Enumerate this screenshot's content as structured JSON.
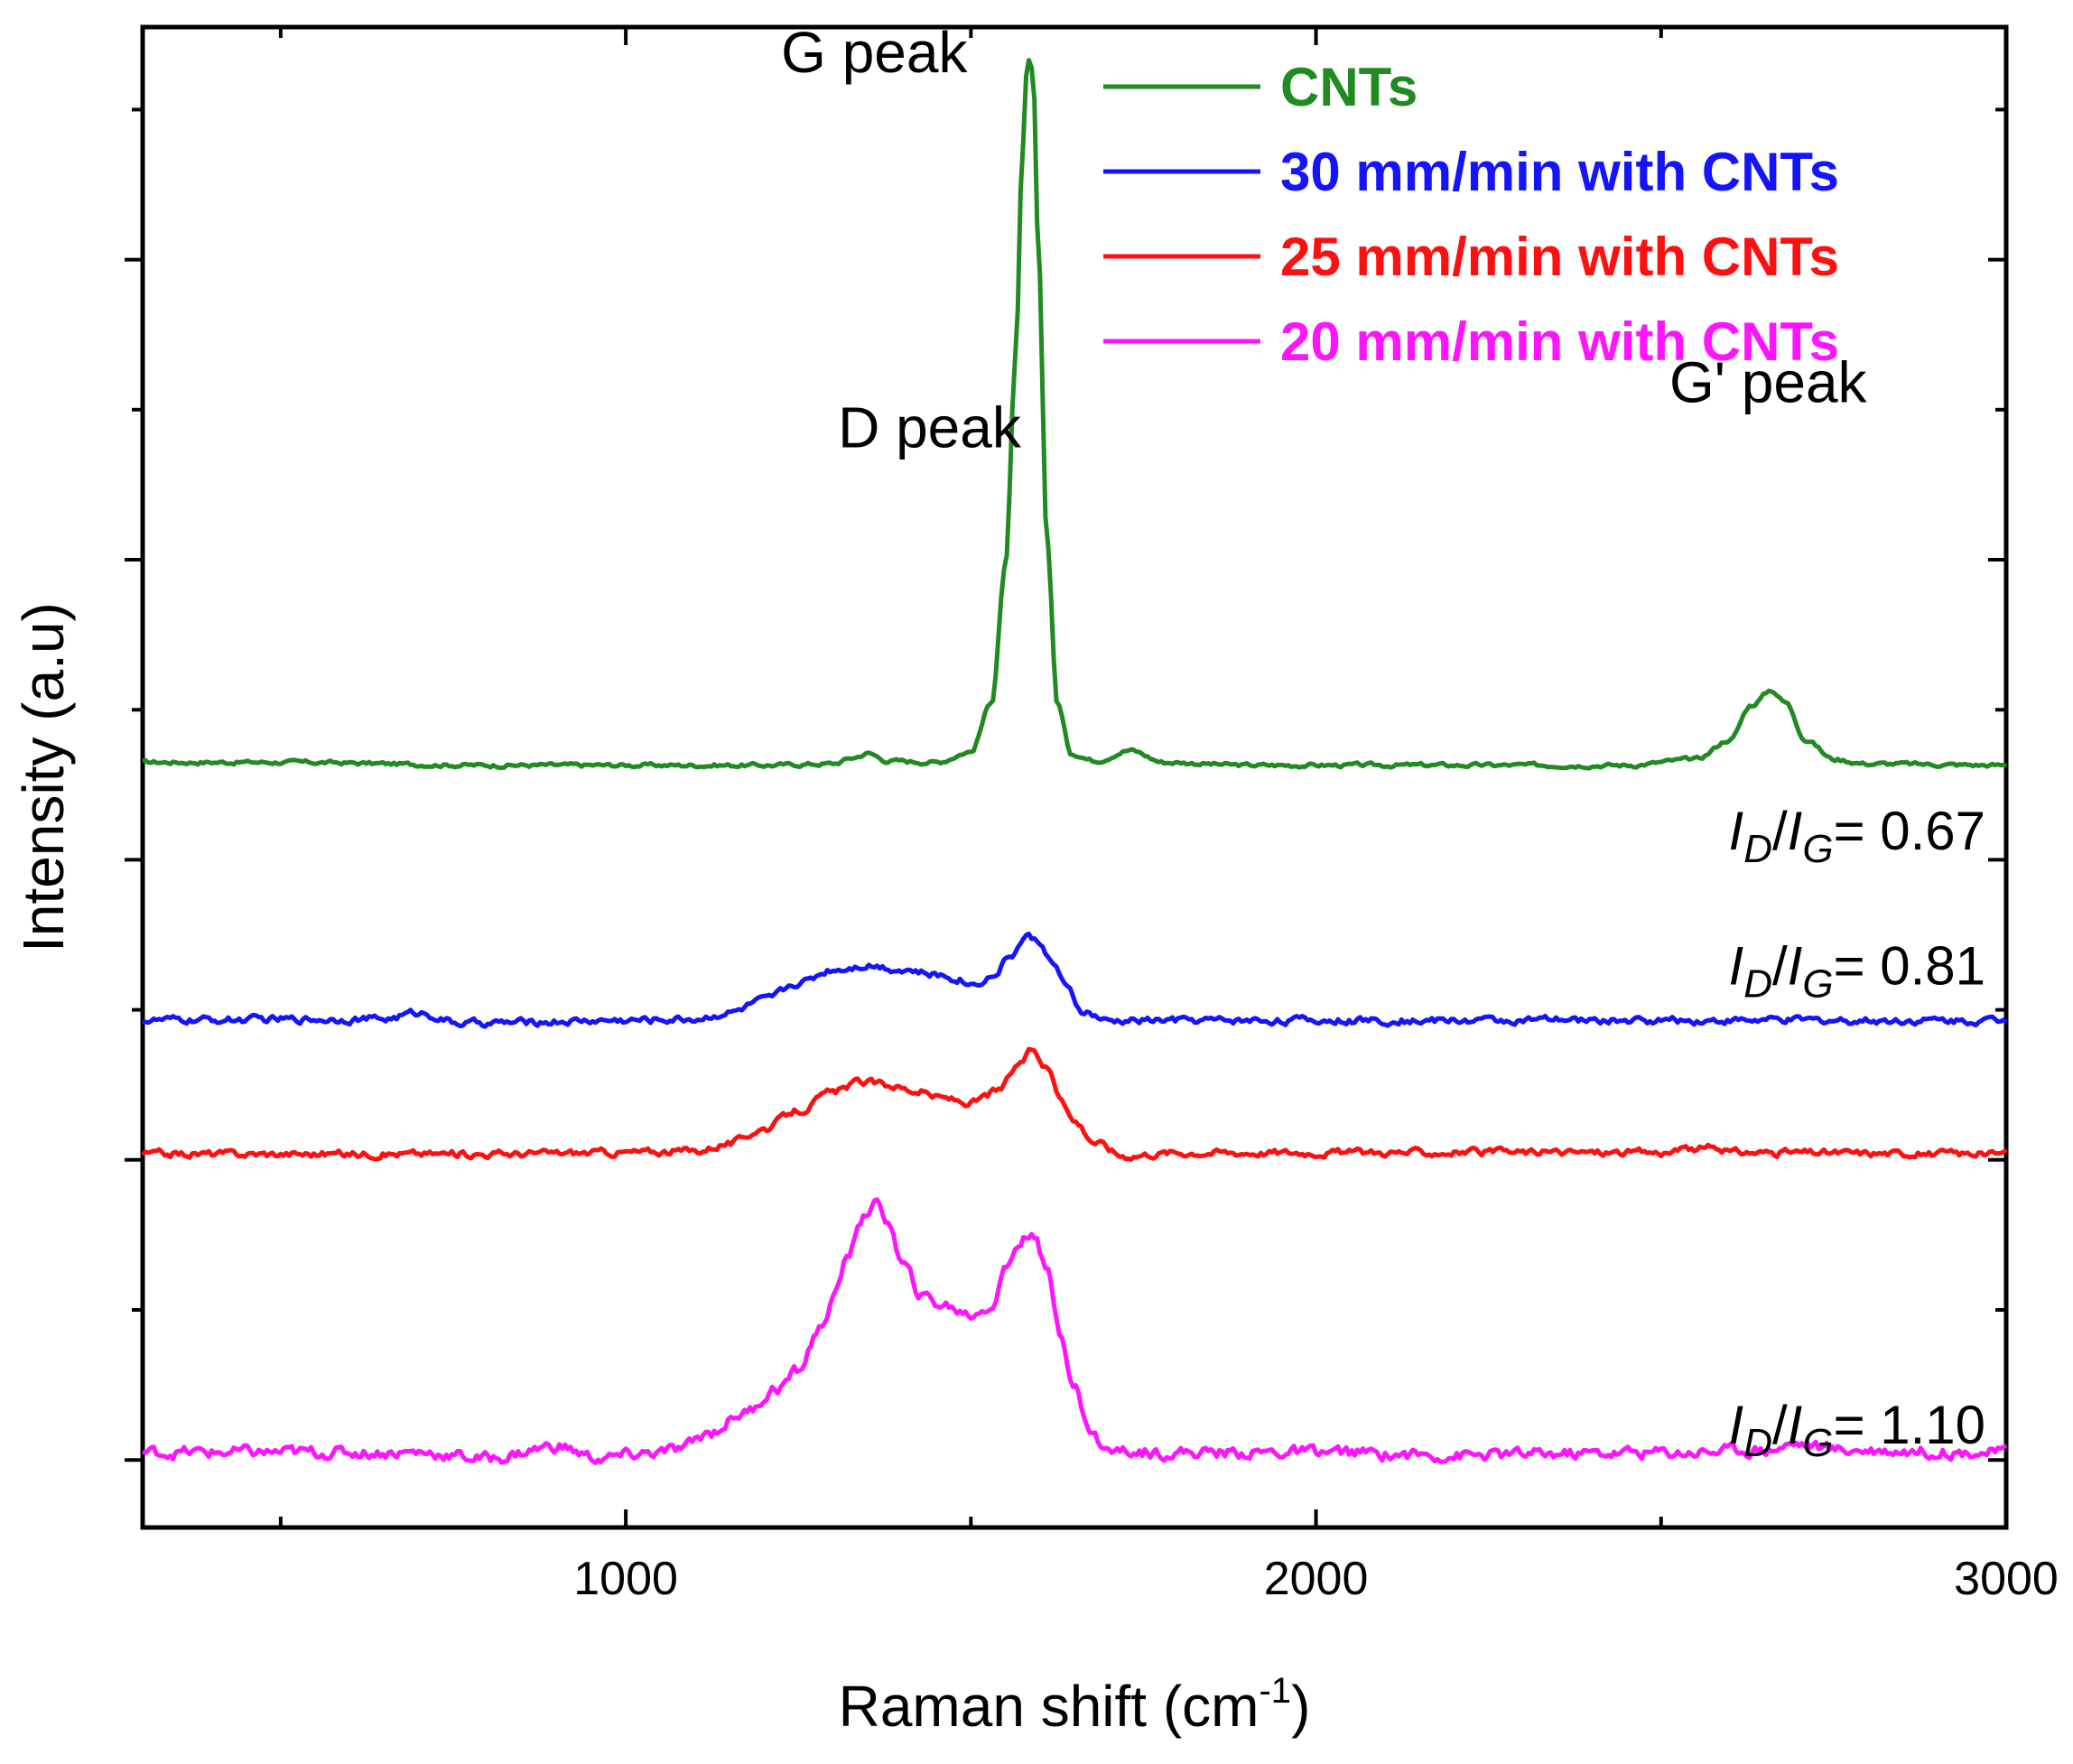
{
  "chart_data": {
    "type": "line",
    "xlabel": "Raman shift (cm",
    "xlabel_sup": "-1",
    "xlabel_close": ")",
    "ylabel": "Intensity (a.u)",
    "xlim": [
      300,
      3000
    ],
    "ylim": [
      0,
      100
    ],
    "x_ticks": [
      1000,
      2000,
      3000
    ],
    "x_tick_labels": [
      "1000",
      "2000",
      "3000"
    ],
    "x_minor_ticks": [
      500,
      1500,
      2500
    ],
    "y_ticks": [
      4.5,
      24.5,
      44.5,
      64.5,
      84.5
    ],
    "y_minor_ticks": [
      14.5,
      34.5,
      54.5,
      74.5,
      94.5
    ],
    "y_tick_labels_shown": false,
    "legend_position": "top-right",
    "annotations": [
      {
        "text": "G peak",
        "x": 1360,
        "y": 97
      },
      {
        "text": "D peak",
        "x": 1440,
        "y": 72
      },
      {
        "text": "G' peak",
        "x": 2655,
        "y": 75
      }
    ],
    "ratios": [
      {
        "I1": "I",
        "s1": "D",
        "slash": "/",
        "I2": "I",
        "s2": "G",
        "value": "= 0.67",
        "x": 2970,
        "y": 45.2
      },
      {
        "I1": "I",
        "s1": "D",
        "slash": "/",
        "I2": "I",
        "s2": "G",
        "value": "= 0.81",
        "x": 2970,
        "y": 36.2
      },
      {
        "I1": "I",
        "s1": "D",
        "slash": "/",
        "I2": "I",
        "s2": "G",
        "value": "= 1.10",
        "x": 2970,
        "y": 5.6
      }
    ],
    "series": [
      {
        "name": "CNTs",
        "color": "#218a21",
        "points": [
          [
            300,
            51
          ],
          [
            500,
            51
          ],
          [
            800,
            50.8
          ],
          [
            1000,
            50.8
          ],
          [
            1200,
            50.8
          ],
          [
            1300,
            50.9
          ],
          [
            1330,
            51.3
          ],
          [
            1350,
            51.6
          ],
          [
            1380,
            51.1
          ],
          [
            1450,
            51
          ],
          [
            1500,
            51.7
          ],
          [
            1530,
            55
          ],
          [
            1550,
            64
          ],
          [
            1565,
            78
          ],
          [
            1575,
            92
          ],
          [
            1582,
            97.8
          ],
          [
            1590,
            97
          ],
          [
            1598,
            85
          ],
          [
            1610,
            66
          ],
          [
            1625,
            55
          ],
          [
            1645,
            51.6
          ],
          [
            1680,
            51.1
          ],
          [
            1730,
            51.8
          ],
          [
            1780,
            51
          ],
          [
            1900,
            50.8
          ],
          [
            2200,
            50.8
          ],
          [
            2450,
            50.8
          ],
          [
            2550,
            51.2
          ],
          [
            2600,
            52.5
          ],
          [
            2630,
            54.8
          ],
          [
            2660,
            55.8
          ],
          [
            2680,
            55
          ],
          [
            2710,
            52.5
          ],
          [
            2750,
            51.2
          ],
          [
            2800,
            50.9
          ],
          [
            3000,
            50.8
          ]
        ],
        "noise": 0.1
      },
      {
        "name": "30 mm/min with CNTs",
        "color": "#1414ff",
        "points": [
          [
            300,
            33.8
          ],
          [
            650,
            33.9
          ],
          [
            700,
            34.3
          ],
          [
            760,
            33.6
          ],
          [
            1000,
            33.8
          ],
          [
            1100,
            33.9
          ],
          [
            1150,
            34.3
          ],
          [
            1200,
            35.1
          ],
          [
            1250,
            36.3
          ],
          [
            1300,
            37.2
          ],
          [
            1350,
            37.5
          ],
          [
            1400,
            37.2
          ],
          [
            1450,
            36.8
          ],
          [
            1480,
            36.6
          ],
          [
            1500,
            36.2
          ],
          [
            1530,
            36.7
          ],
          [
            1560,
            38.2
          ],
          [
            1580,
            39.4
          ],
          [
            1600,
            39
          ],
          [
            1620,
            37.5
          ],
          [
            1640,
            35.8
          ],
          [
            1660,
            34.4
          ],
          [
            1700,
            33.7
          ],
          [
            1750,
            33.8
          ],
          [
            2000,
            33.8
          ],
          [
            2500,
            33.8
          ],
          [
            3000,
            33.8
          ]
        ],
        "noise": 0.18
      },
      {
        "name": "25 mm/min with CNTs",
        "color": "#ff1010",
        "points": [
          [
            300,
            24.9
          ],
          [
            800,
            24.9
          ],
          [
            1000,
            25
          ],
          [
            1100,
            25.1
          ],
          [
            1150,
            25.6
          ],
          [
            1200,
            26.6
          ],
          [
            1250,
            27.8
          ],
          [
            1300,
            29
          ],
          [
            1340,
            29.7
          ],
          [
            1380,
            29.5
          ],
          [
            1420,
            29.1
          ],
          [
            1460,
            28.6
          ],
          [
            1500,
            28.3
          ],
          [
            1540,
            29.1
          ],
          [
            1570,
            30.9
          ],
          [
            1590,
            31.8
          ],
          [
            1610,
            30.7
          ],
          [
            1630,
            28.8
          ],
          [
            1650,
            27.1
          ],
          [
            1680,
            25.7
          ],
          [
            1720,
            24.8
          ],
          [
            1800,
            25
          ],
          [
            2000,
            25
          ],
          [
            2500,
            25
          ],
          [
            2580,
            25.3
          ],
          [
            2600,
            25
          ],
          [
            3000,
            24.9
          ]
        ],
        "noise": 0.18
      },
      {
        "name": "20 mm/min with CNTs",
        "color": "#ff14ff",
        "points": [
          [
            300,
            5
          ],
          [
            500,
            5
          ],
          [
            700,
            5
          ],
          [
            800,
            4.6
          ],
          [
            900,
            5.4
          ],
          [
            960,
            4.6
          ],
          [
            1050,
            5
          ],
          [
            1080,
            5.2
          ],
          [
            1120,
            6.3
          ],
          [
            1170,
            7.6
          ],
          [
            1220,
            9.3
          ],
          [
            1250,
            10.4
          ],
          [
            1280,
            13.2
          ],
          [
            1300,
            15.1
          ],
          [
            1320,
            17.8
          ],
          [
            1340,
            20.6
          ],
          [
            1360,
            21.5
          ],
          [
            1380,
            20.5
          ],
          [
            1400,
            17.5
          ],
          [
            1430,
            15.4
          ],
          [
            1460,
            14.8
          ],
          [
            1500,
            14.2
          ],
          [
            1530,
            14.8
          ],
          [
            1550,
            17.2
          ],
          [
            1570,
            19
          ],
          [
            1590,
            19.8
          ],
          [
            1610,
            17
          ],
          [
            1630,
            13
          ],
          [
            1650,
            9.5
          ],
          [
            1670,
            6.5
          ],
          [
            1700,
            5.1
          ],
          [
            1800,
            5
          ],
          [
            2000,
            5
          ],
          [
            2200,
            4.8
          ],
          [
            2500,
            5
          ],
          [
            2650,
            5.2
          ],
          [
            2700,
            5.6
          ],
          [
            2750,
            5.2
          ],
          [
            3000,
            5
          ]
        ],
        "noise": 0.3
      }
    ]
  }
}
